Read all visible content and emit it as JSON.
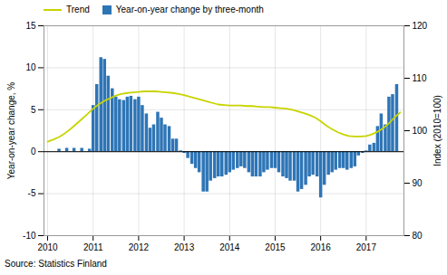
{
  "chart_data": {
    "type": "bar",
    "source": "Source: Statistics Finland",
    "ylabel": "Year-on-year change, %",
    "y2label": "Index (2010=100)",
    "xlim": [
      2009.92,
      2017.83
    ],
    "xticks": [
      2010,
      2011,
      2012,
      2013,
      2014,
      2015,
      2016,
      2017
    ],
    "ylim": [
      -10,
      15
    ],
    "yticks": [
      -10,
      -5,
      0,
      5,
      10,
      15
    ],
    "y2lim": [
      80,
      120
    ],
    "y2ticks": [
      80,
      90,
      100,
      110,
      120
    ],
    "grid": true,
    "legend": "upper left",
    "series": [
      {
        "name": "Trend",
        "type": "line",
        "axis": "y2",
        "color": "#c8d400",
        "x": [
          2010.0,
          2010.12,
          2010.25,
          2010.38,
          2010.5,
          2010.62,
          2010.75,
          2010.88,
          2011.0,
          2011.12,
          2011.25,
          2011.38,
          2011.5,
          2011.62,
          2011.75,
          2011.88,
          2012.0,
          2012.12,
          2012.25,
          2012.38,
          2012.5,
          2012.62,
          2012.75,
          2012.88,
          2013.0,
          2013.12,
          2013.25,
          2013.38,
          2013.5,
          2013.62,
          2013.75,
          2013.88,
          2014.0,
          2014.12,
          2014.25,
          2014.38,
          2014.5,
          2014.62,
          2014.75,
          2014.88,
          2015.0,
          2015.12,
          2015.25,
          2015.38,
          2015.5,
          2015.62,
          2015.75,
          2015.88,
          2016.0,
          2016.12,
          2016.25,
          2016.38,
          2016.5,
          2016.62,
          2016.75,
          2016.88,
          2017.0,
          2017.12,
          2017.25,
          2017.38,
          2017.5,
          2017.62,
          2017.75
        ],
        "values": [
          97.9,
          98.3,
          98.8,
          99.5,
          100.3,
          101.2,
          102.2,
          103.2,
          104.2,
          105.0,
          105.7,
          106.2,
          106.7,
          107.0,
          107.2,
          107.3,
          107.4,
          107.5,
          107.5,
          107.5,
          107.4,
          107.3,
          107.2,
          107.0,
          106.8,
          106.5,
          106.2,
          105.9,
          105.6,
          105.3,
          105.0,
          104.9,
          104.8,
          104.8,
          104.8,
          104.7,
          104.7,
          104.6,
          104.5,
          104.5,
          104.4,
          104.3,
          104.2,
          104.0,
          103.7,
          103.4,
          103.0,
          102.5,
          101.8,
          101.0,
          100.3,
          99.7,
          99.3,
          99.0,
          98.9,
          98.9,
          99.0,
          99.3,
          99.8,
          100.5,
          101.4,
          102.5,
          103.5
        ]
      },
      {
        "name": "Year-on-year change by three-month",
        "type": "bar",
        "color": "#2e75b6",
        "x": [
          2010.25,
          2010.42,
          2010.58,
          2010.75,
          2010.92,
          2011.0,
          2011.08,
          2011.17,
          2011.25,
          2011.33,
          2011.42,
          2011.5,
          2011.58,
          2011.67,
          2011.75,
          2011.83,
          2011.92,
          2012.0,
          2012.08,
          2012.17,
          2012.25,
          2012.33,
          2012.42,
          2012.5,
          2012.58,
          2012.67,
          2012.75,
          2012.83,
          2012.92,
          2013.0,
          2013.08,
          2013.17,
          2013.25,
          2013.33,
          2013.42,
          2013.5,
          2013.58,
          2013.67,
          2013.75,
          2013.83,
          2013.92,
          2014.0,
          2014.08,
          2014.17,
          2014.25,
          2014.33,
          2014.42,
          2014.5,
          2014.58,
          2014.67,
          2014.75,
          2014.83,
          2014.92,
          2015.0,
          2015.08,
          2015.17,
          2015.25,
          2015.33,
          2015.42,
          2015.5,
          2015.58,
          2015.67,
          2015.75,
          2015.83,
          2015.92,
          2016.0,
          2016.08,
          2016.17,
          2016.25,
          2016.33,
          2016.42,
          2016.5,
          2016.58,
          2016.67,
          2016.75,
          2016.83,
          2016.92,
          2017.0,
          2017.08,
          2017.17,
          2017.25,
          2017.33,
          2017.42,
          2017.5,
          2017.58,
          2017.67
        ],
        "values": [
          0.3,
          0.4,
          0.4,
          0.4,
          0.3,
          5.5,
          8.0,
          11.2,
          11.0,
          9.0,
          7.5,
          6.5,
          6.2,
          6.1,
          6.5,
          6.6,
          6.2,
          6.5,
          5.5,
          4.5,
          2.8,
          3.2,
          4.7,
          4.0,
          3.2,
          3.0,
          1.5,
          1.5,
          0.1,
          -0.2,
          -0.8,
          -1.5,
          -2.0,
          -2.5,
          -4.8,
          -4.8,
          -3.5,
          -3.2,
          -3.0,
          -3.0,
          -2.8,
          -2.5,
          -2.2,
          -2.0,
          -1.8,
          -2.0,
          -2.5,
          -3.0,
          -3.0,
          -3.0,
          -2.5,
          -2.2,
          -2.0,
          -2.0,
          -2.5,
          -3.0,
          -3.2,
          -3.5,
          -3.5,
          -4.8,
          -4.5,
          -4.0,
          -3.0,
          -2.8,
          -3.0,
          -5.5,
          -4.0,
          -2.8,
          -2.5,
          -2.2,
          -2.0,
          -2.0,
          -2.2,
          -2.0,
          -1.8,
          -0.5,
          -0.2,
          0.1,
          0.8,
          1.0,
          3.0,
          4.5,
          3.2,
          6.5,
          6.8,
          8.0
        ]
      }
    ]
  }
}
